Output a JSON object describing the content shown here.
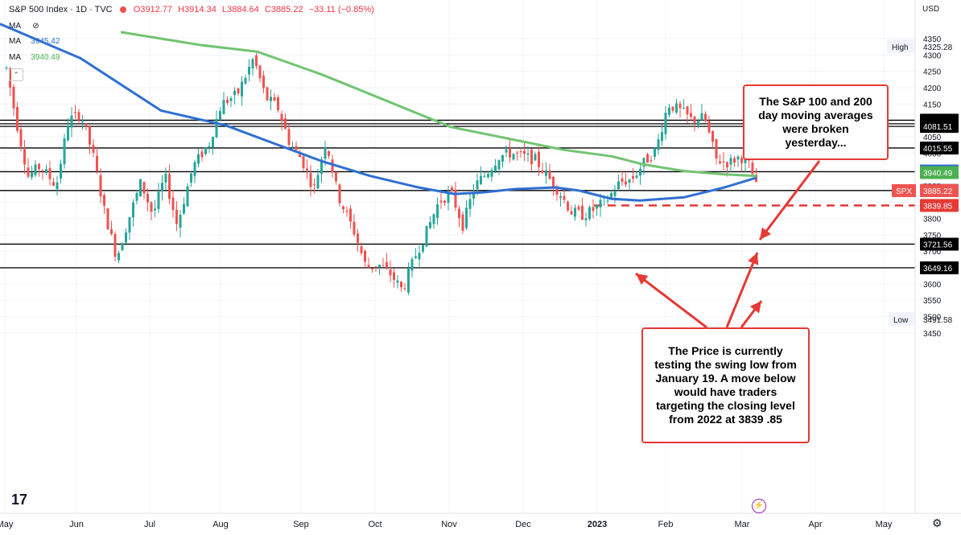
{
  "header": {
    "symbol": "S&P 500 Index · 1D · TVC",
    "ohlc": {
      "o": "O3912.77",
      "h": "H3914.34",
      "l": "L3884.64",
      "c": "C3885.22",
      "chg": "−33.11 (−0.85%)"
    },
    "ma_rows": [
      {
        "label": "MA",
        "value": ""
      },
      {
        "label": "MA",
        "value": "3945.42"
      },
      {
        "label": "MA",
        "value": "3940.49"
      }
    ],
    "currency": "USD"
  },
  "annotations": {
    "top": "The S&P 100 and 200\nday moving averages\nwere broken\nyesterday...",
    "bottom": "The Price is currently\ntesting the swing low from\nJanuary 19.  A move below\nwould have traders\ntargeting the closing level\nfrom 2022 at 3839 .85"
  },
  "colors": {
    "up": "#26a69a",
    "down": "#ef5350",
    "ma100": "#2f6fd1",
    "ma200": "#72c472",
    "annotation": "#e53935",
    "level": "#000000"
  },
  "chart_data": {
    "type": "candlestick",
    "title": "S&P 500 Index · 1D · TVC",
    "ylabel": "USD",
    "ylim": [
      3420,
      4380
    ],
    "y_ticks": [
      3450,
      3500,
      3550,
      3600,
      3650,
      3700,
      3750,
      3800,
      3850,
      3900,
      3950,
      4000,
      4050,
      4100,
      4150,
      4200,
      4250,
      4300,
      4350
    ],
    "x_tick_labels": [
      "May",
      "Jun",
      "Jul",
      "Aug",
      "Sep",
      "Oct",
      "Nov",
      "Dec",
      "2023",
      "Feb",
      "Mar",
      "Apr",
      "May"
    ],
    "high": {
      "label": "High",
      "value": 4325.28
    },
    "low": {
      "label": "Low",
      "value": 3491.58
    },
    "last": {
      "label": "SPX",
      "value": 3885.22
    },
    "horizontal_levels": [
      4100.51,
      4089.49,
      4081.51,
      4015.55,
      3943.08,
      3885.54,
      3721.56,
      3649.16
    ],
    "dashed_level": 3839.85,
    "series": [
      {
        "name": "MA",
        "last": 3945.42,
        "path": [
          [
            0,
            4395
          ],
          [
            100,
            4290
          ],
          [
            200,
            4130
          ],
          [
            280,
            4085
          ],
          [
            340,
            4030
          ],
          [
            400,
            3975
          ],
          [
            460,
            3930
          ],
          [
            520,
            3895
          ],
          [
            565,
            3875
          ],
          [
            600,
            3880
          ],
          [
            640,
            3890
          ],
          [
            690,
            3895
          ],
          [
            720,
            3885
          ],
          [
            760,
            3860
          ],
          [
            795,
            3855
          ],
          [
            850,
            3865
          ],
          [
            900,
            3895
          ],
          [
            940,
            3925
          ]
        ]
      },
      {
        "name": "MA",
        "last": 3940.49,
        "path": [
          [
            150,
            4370
          ],
          [
            250,
            4330
          ],
          [
            320,
            4310
          ],
          [
            400,
            4240
          ],
          [
            480,
            4160
          ],
          [
            560,
            4080
          ],
          [
            640,
            4040
          ],
          [
            700,
            4010
          ],
          [
            760,
            3990
          ],
          [
            800,
            3965
          ],
          [
            850,
            3945
          ],
          [
            900,
            3935
          ],
          [
            940,
            3930
          ]
        ]
      }
    ],
    "price_path": [
      [
        8,
        4260
      ],
      [
        20,
        4100
      ],
      [
        35,
        3930
      ],
      [
        50,
        3960
      ],
      [
        70,
        3900
      ],
      [
        85,
        4100
      ],
      [
        100,
        4120
      ],
      [
        115,
        4000
      ],
      [
        130,
        3820
      ],
      [
        145,
        3680
      ],
      [
        160,
        3800
      ],
      [
        175,
        3910
      ],
      [
        190,
        3810
      ],
      [
        205,
        3930
      ],
      [
        220,
        3780
      ],
      [
        240,
        3960
      ],
      [
        260,
        4030
      ],
      [
        275,
        4150
      ],
      [
        295,
        4180
      ],
      [
        315,
        4290
      ],
      [
        330,
        4170
      ],
      [
        345,
        4140
      ],
      [
        360,
        4030
      ],
      [
        375,
        3980
      ],
      [
        390,
        3890
      ],
      [
        405,
        4040
      ],
      [
        420,
        3870
      ],
      [
        440,
        3760
      ],
      [
        455,
        3650
      ],
      [
        470,
        3660
      ],
      [
        485,
        3630
      ],
      [
        500,
        3580
      ],
      [
        515,
        3680
      ],
      [
        530,
        3760
      ],
      [
        545,
        3850
      ],
      [
        560,
        3880
      ],
      [
        575,
        3780
      ],
      [
        590,
        3900
      ],
      [
        605,
        3940
      ],
      [
        620,
        3990
      ],
      [
        635,
        4000
      ],
      [
        650,
        3990
      ],
      [
        665,
        3980
      ],
      [
        680,
        3930
      ],
      [
        695,
        3880
      ],
      [
        710,
        3820
      ],
      [
        725,
        3810
      ],
      [
        740,
        3830
      ],
      [
        755,
        3860
      ],
      [
        770,
        3910
      ],
      [
        785,
        3920
      ],
      [
        800,
        3970
      ],
      [
        815,
        4010
      ],
      [
        830,
        4150
      ],
      [
        845,
        4130
      ],
      [
        860,
        4100
      ],
      [
        875,
        4110
      ],
      [
        890,
        3980
      ],
      [
        905,
        3970
      ],
      [
        920,
        3990
      ],
      [
        932,
        3960
      ],
      [
        941,
        3885
      ]
    ]
  }
}
